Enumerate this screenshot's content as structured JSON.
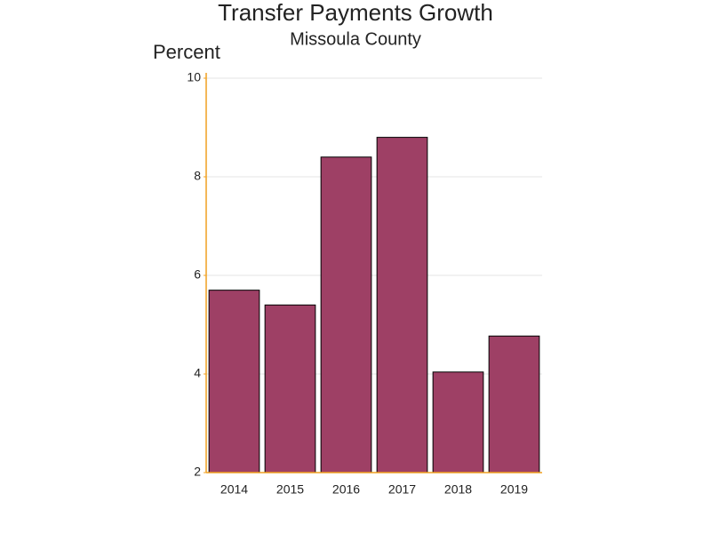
{
  "chart_data": {
    "type": "bar",
    "title": "Transfer Payments Growth",
    "subtitle": "Missoula County",
    "y_label": "Percent",
    "categories": [
      "2014",
      "2015",
      "2016",
      "2017",
      "2018",
      "2019"
    ],
    "values": [
      5.7,
      5.4,
      8.4,
      8.8,
      4.04,
      4.77
    ],
    "color": "#9e4065",
    "ylim": [
      2,
      10
    ],
    "yticks": [
      2,
      4,
      6,
      8,
      10
    ],
    "grid": true,
    "axis_color": "#f0a020"
  }
}
